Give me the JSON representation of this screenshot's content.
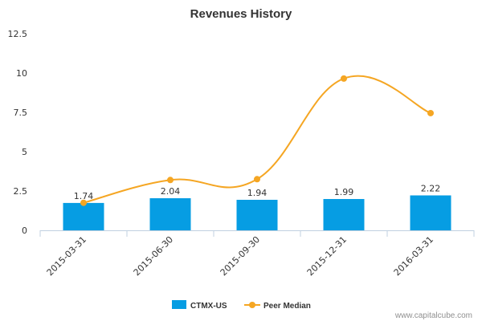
{
  "chart_data": {
    "type": "bar",
    "title": "Revenues History",
    "categories": [
      "2015-03-31",
      "2015-06-30",
      "2015-09-30",
      "2015-12-31",
      "2016-03-31"
    ],
    "series": [
      {
        "name": "CTMX-US",
        "type": "bar",
        "values": [
          1.74,
          2.04,
          1.94,
          1.99,
          2.22
        ],
        "data_labels": [
          "1.74",
          "2.04",
          "1.94",
          "1.99",
          "2.22"
        ],
        "color": "#069de3"
      },
      {
        "name": "Peer Median",
        "type": "line",
        "values": [
          1.75,
          3.2,
          3.25,
          9.65,
          7.45
        ],
        "color": "#f5a623"
      }
    ],
    "ylim": [
      0,
      12.5
    ],
    "yticks": [
      "0",
      "2.5",
      "5",
      "7.5",
      "10",
      "12.5"
    ],
    "grid": false,
    "legend_position": "bottom-center"
  },
  "credit": "www.capitalcube.com"
}
